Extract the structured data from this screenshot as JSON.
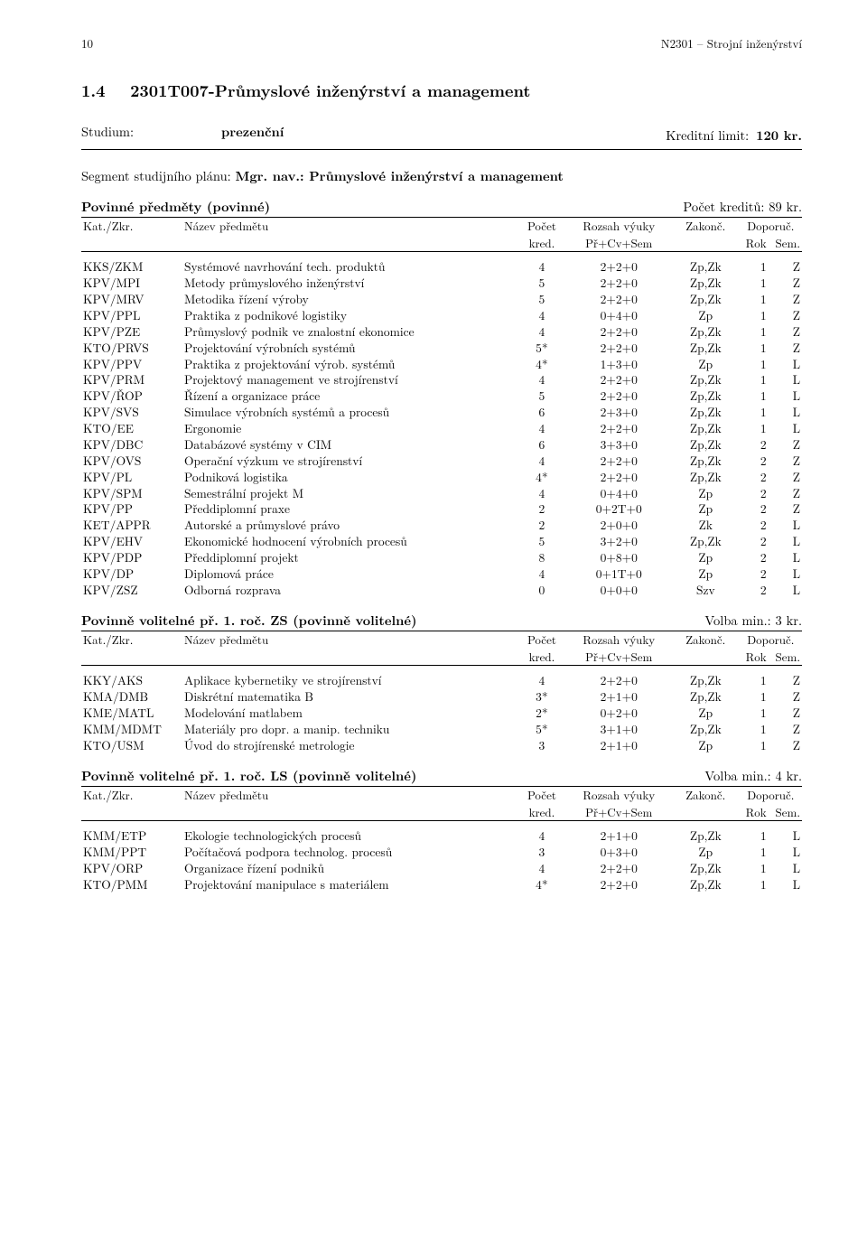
{
  "header": {
    "page_num": "10",
    "doc_title": "N2301 – Strojní inženýrství"
  },
  "section": {
    "number": "1.4",
    "title": "2301T007-Průmyslové inženýrství a management"
  },
  "meta": {
    "studium_label": "Studium:",
    "studium_value": "prezenční",
    "kredit_label": "Kreditní limit:",
    "kredit_value": "120 kr."
  },
  "segment": {
    "label": "Segment studijního plánu: ",
    "nav": "Mgr. nav.: Průmyslové inženýrství a management"
  },
  "col_labels": {
    "kat": "Kat./Zkr.",
    "name": "Název předmětu",
    "pocet": "Počet",
    "kred": "kred.",
    "rozsah": "Rozsah výuky",
    "prcv": "Př+Cv+Sem",
    "zakonc": "Zakonč.",
    "doporuc": "Doporuč.",
    "rok": "Rok",
    "sem": "Sem."
  },
  "groups": [
    {
      "title": "Povinné předměty (povinné)",
      "right": "Počet kreditů: 89 kr.",
      "rows": [
        {
          "c": "KKS/ZKM",
          "n": "Systémové navrhování tech. produktů",
          "k": "4",
          "r": "2+2+0",
          "z": "Zp,Zk",
          "y": "1",
          "s": "Z"
        },
        {
          "c": "KPV/MPI",
          "n": "Metody průmyslového inženýrství",
          "k": "5",
          "r": "2+2+0",
          "z": "Zp,Zk",
          "y": "1",
          "s": "Z"
        },
        {
          "c": "KPV/MRV",
          "n": "Metodika řízení výroby",
          "k": "5",
          "r": "2+2+0",
          "z": "Zp,Zk",
          "y": "1",
          "s": "Z"
        },
        {
          "c": "KPV/PPL",
          "n": "Praktika z podnikové logistiky",
          "k": "4",
          "r": "0+4+0",
          "z": "Zp",
          "y": "1",
          "s": "Z"
        },
        {
          "c": "KPV/PZE",
          "n": "Průmyslový podnik ve znalostní ekonomice",
          "k": "4",
          "r": "2+2+0",
          "z": "Zp,Zk",
          "y": "1",
          "s": "Z"
        },
        {
          "c": "KTO/PRVS",
          "n": "Projektování výrobních systémů",
          "k": "5*",
          "r": "2+2+0",
          "z": "Zp,Zk",
          "y": "1",
          "s": "Z"
        },
        {
          "c": "KPV/PPV",
          "n": "Praktika z projektování výrob. systémů",
          "k": "4*",
          "r": "1+3+0",
          "z": "Zp",
          "y": "1",
          "s": "L"
        },
        {
          "c": "KPV/PRM",
          "n": "Projektový management ve strojírenství",
          "k": "4",
          "r": "2+2+0",
          "z": "Zp,Zk",
          "y": "1",
          "s": "L"
        },
        {
          "c": "KPV/ŘOP",
          "n": "Řízení a organizace práce",
          "k": "5",
          "r": "2+2+0",
          "z": "Zp,Zk",
          "y": "1",
          "s": "L"
        },
        {
          "c": "KPV/SVS",
          "n": "Simulace výrobních systémů a procesů",
          "k": "6",
          "r": "2+3+0",
          "z": "Zp,Zk",
          "y": "1",
          "s": "L"
        },
        {
          "c": "KTO/EE",
          "n": "Ergonomie",
          "k": "4",
          "r": "2+2+0",
          "z": "Zp,Zk",
          "y": "1",
          "s": "L"
        },
        {
          "c": "KPV/DBC",
          "n": "Databázové systémy v CIM",
          "k": "6",
          "r": "3+3+0",
          "z": "Zp,Zk",
          "y": "2",
          "s": "Z"
        },
        {
          "c": "KPV/OVS",
          "n": "Operační výzkum ve strojírenství",
          "k": "4",
          "r": "2+2+0",
          "z": "Zp,Zk",
          "y": "2",
          "s": "Z"
        },
        {
          "c": "KPV/PL",
          "n": "Podniková logistika",
          "k": "4*",
          "r": "2+2+0",
          "z": "Zp,Zk",
          "y": "2",
          "s": "Z"
        },
        {
          "c": "KPV/SPM",
          "n": "Semestrální projekt M",
          "k": "4",
          "r": "0+4+0",
          "z": "Zp",
          "y": "2",
          "s": "Z"
        },
        {
          "c": "KPV/PP",
          "n": "Předdiplomní praxe",
          "k": "2",
          "r": "0+2T+0",
          "z": "Zp",
          "y": "2",
          "s": "Z"
        },
        {
          "c": "KET/APPR",
          "n": "Autorské a průmyslové právo",
          "k": "2",
          "r": "2+0+0",
          "z": "Zk",
          "y": "2",
          "s": "L"
        },
        {
          "c": "KPV/EHV",
          "n": "Ekonomické hodnocení výrobních procesů",
          "k": "5",
          "r": "3+2+0",
          "z": "Zp,Zk",
          "y": "2",
          "s": "L"
        },
        {
          "c": "KPV/PDP",
          "n": "Předdiplomní projekt",
          "k": "8",
          "r": "0+8+0",
          "z": "Zp",
          "y": "2",
          "s": "L"
        },
        {
          "c": "KPV/DP",
          "n": "Diplomová práce",
          "k": "4",
          "r": "0+1T+0",
          "z": "Zp",
          "y": "2",
          "s": "L"
        },
        {
          "c": "KPV/ZSZ",
          "n": "Odborná rozprava",
          "k": "0",
          "r": "0+0+0",
          "z": "Szv",
          "y": "2",
          "s": "L"
        }
      ]
    },
    {
      "title": "Povinně volitelné př. 1. roč. ZS (povinně volitelné)",
      "right": "Volba min.: 3 kr.",
      "rows": [
        {
          "c": "KKY/AKS",
          "n": "Aplikace kybernetiky ve strojírenství",
          "k": "4",
          "r": "2+2+0",
          "z": "Zp,Zk",
          "y": "1",
          "s": "Z"
        },
        {
          "c": "KMA/DMB",
          "n": "Diskrétní matematika B",
          "k": "3*",
          "r": "2+1+0",
          "z": "Zp,Zk",
          "y": "1",
          "s": "Z"
        },
        {
          "c": "KME/MATL",
          "n": "Modelování matlabem",
          "k": "2*",
          "r": "0+2+0",
          "z": "Zp",
          "y": "1",
          "s": "Z"
        },
        {
          "c": "KMM/MDMT",
          "n": "Materiály pro dopr. a manip. techniku",
          "k": "5*",
          "r": "3+1+0",
          "z": "Zp,Zk",
          "y": "1",
          "s": "Z"
        },
        {
          "c": "KTO/USM",
          "n": "Úvod do strojírenské metrologie",
          "k": "3",
          "r": "2+1+0",
          "z": "Zp",
          "y": "1",
          "s": "Z"
        }
      ]
    },
    {
      "title": "Povinně volitelné př. 1. roč. LS (povinně volitelné)",
      "right": "Volba min.: 4 kr.",
      "rows": [
        {
          "c": "KMM/ETP",
          "n": "Ekologie technologických procesů",
          "k": "4",
          "r": "2+1+0",
          "z": "Zp,Zk",
          "y": "1",
          "s": "L"
        },
        {
          "c": "KMM/PPT",
          "n": "Počítačová podpora technolog. procesů",
          "k": "3",
          "r": "0+3+0",
          "z": "Zp",
          "y": "1",
          "s": "L"
        },
        {
          "c": "KPV/ORP",
          "n": "Organizace řízení podniků",
          "k": "4",
          "r": "2+2+0",
          "z": "Zp,Zk",
          "y": "1",
          "s": "L"
        },
        {
          "c": "KTO/PMM",
          "n": "Projektování manipulace s materiálem",
          "k": "4*",
          "r": "2+2+0",
          "z": "Zp,Zk",
          "y": "1",
          "s": "L"
        }
      ]
    }
  ]
}
